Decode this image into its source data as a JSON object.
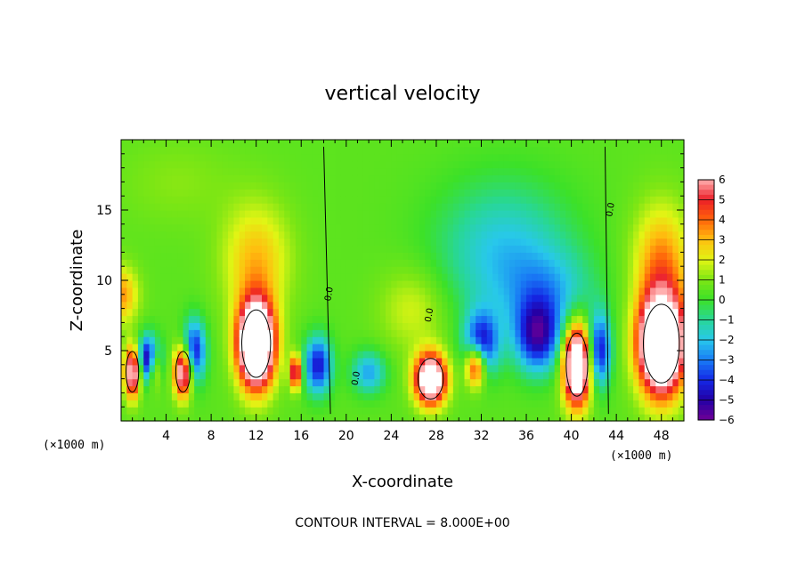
{
  "chart_data": {
    "type": "heatmap",
    "title": "vertical velocity",
    "xlabel": "X-coordinate",
    "ylabel": "Z-coordinate",
    "x_unit_left": "(×1000 m)",
    "x_unit_right": "(×1000 m)",
    "xlim": [
      0,
      50
    ],
    "ylim": [
      0,
      20
    ],
    "xticks": [
      "4",
      "8",
      "12",
      "16",
      "20",
      "24",
      "28",
      "32",
      "36",
      "40",
      "44",
      "48"
    ],
    "xtick_values": [
      4,
      8,
      12,
      16,
      20,
      24,
      28,
      32,
      36,
      40,
      44,
      48
    ],
    "yticks": [
      "5",
      "10",
      "15"
    ],
    "ytick_values": [
      5,
      10,
      15
    ],
    "colorbar": {
      "min": -6,
      "max": 6,
      "ticks": [
        "6",
        "5",
        "4",
        "3",
        "2",
        "1",
        "0",
        "−1",
        "−2",
        "−3",
        "−4",
        "−5",
        "−6"
      ],
      "tick_values": [
        6,
        5,
        4,
        3,
        2,
        1,
        0,
        -1,
        -2,
        -3,
        -4,
        -5,
        -6
      ]
    },
    "contour_label": "0.0",
    "contour_interval": 8.0,
    "features": [
      {
        "x": 12.0,
        "z": 5.5,
        "w": 12,
        "sx": 1.6,
        "sz": 3.0
      },
      {
        "x": 48.0,
        "z": 5.5,
        "w": 12,
        "sx": 2.0,
        "sz": 3.5
      },
      {
        "x": 27.5,
        "z": 3.0,
        "w": 9,
        "sx": 1.4,
        "sz": 1.8
      },
      {
        "x": 40.5,
        "z": 4.0,
        "w": 10,
        "sx": 1.2,
        "sz": 2.8
      },
      {
        "x": 1.0,
        "z": 3.5,
        "w": 7,
        "sx": 0.7,
        "sz": 1.8
      },
      {
        "x": 5.5,
        "z": 3.5,
        "w": 7,
        "sx": 0.8,
        "sz": 1.8
      },
      {
        "x": 3.0,
        "z": 4.0,
        "w": 4,
        "sx": 0.5,
        "sz": 1.5
      },
      {
        "x": 2.5,
        "z": 4.5,
        "w": -6,
        "sx": 1.0,
        "sz": 1.6
      },
      {
        "x": 6.5,
        "z": 5.0,
        "w": -5,
        "sx": 1.0,
        "sz": 2.2
      },
      {
        "x": 31.5,
        "z": 4.0,
        "w": 6,
        "sx": 0.9,
        "sz": 1.5
      },
      {
        "x": 15.5,
        "z": 3.5,
        "w": 6,
        "sx": 0.5,
        "sz": 1.2
      },
      {
        "x": 22.0,
        "z": 3.5,
        "w": -3,
        "sx": 1.5,
        "sz": 1.5
      },
      {
        "x": 17.5,
        "z": 4.0,
        "w": -5,
        "sx": 1.2,
        "sz": 2.0
      },
      {
        "x": 32.0,
        "z": 5.5,
        "w": -5,
        "sx": 1.5,
        "sz": 2.2
      },
      {
        "x": 37.0,
        "z": 6.0,
        "w": -5,
        "sx": 2.0,
        "sz": 2.5
      },
      {
        "x": 42.5,
        "z": 5.0,
        "w": -5,
        "sx": 1.0,
        "sz": 2.5
      },
      {
        "x": 34.0,
        "z": 12.0,
        "w": -2.5,
        "sx": 6.0,
        "sz": 5.0
      },
      {
        "x": 38.0,
        "z": 9.0,
        "w": -2,
        "sx": 4.0,
        "sz": 3.0
      },
      {
        "x": 12.0,
        "z": 11.5,
        "w": 2.5,
        "sx": 3.0,
        "sz": 4.0
      },
      {
        "x": 48.0,
        "z": 11.5,
        "w": 3,
        "sx": 2.5,
        "sz": 4.0
      },
      {
        "x": 0.0,
        "z": 9.0,
        "w": 3,
        "sx": 1.5,
        "sz": 2.0
      },
      {
        "x": 5.0,
        "z": 17.0,
        "w": 0.6,
        "sx": 5.0,
        "sz": 3.0
      },
      {
        "x": 26.0,
        "z": 8.0,
        "w": 1.5,
        "sx": 3.0,
        "sz": 3.0
      }
    ]
  },
  "footer": {
    "contour_interval_label": "CONTOUR INTERVAL = 8.000E+00"
  }
}
